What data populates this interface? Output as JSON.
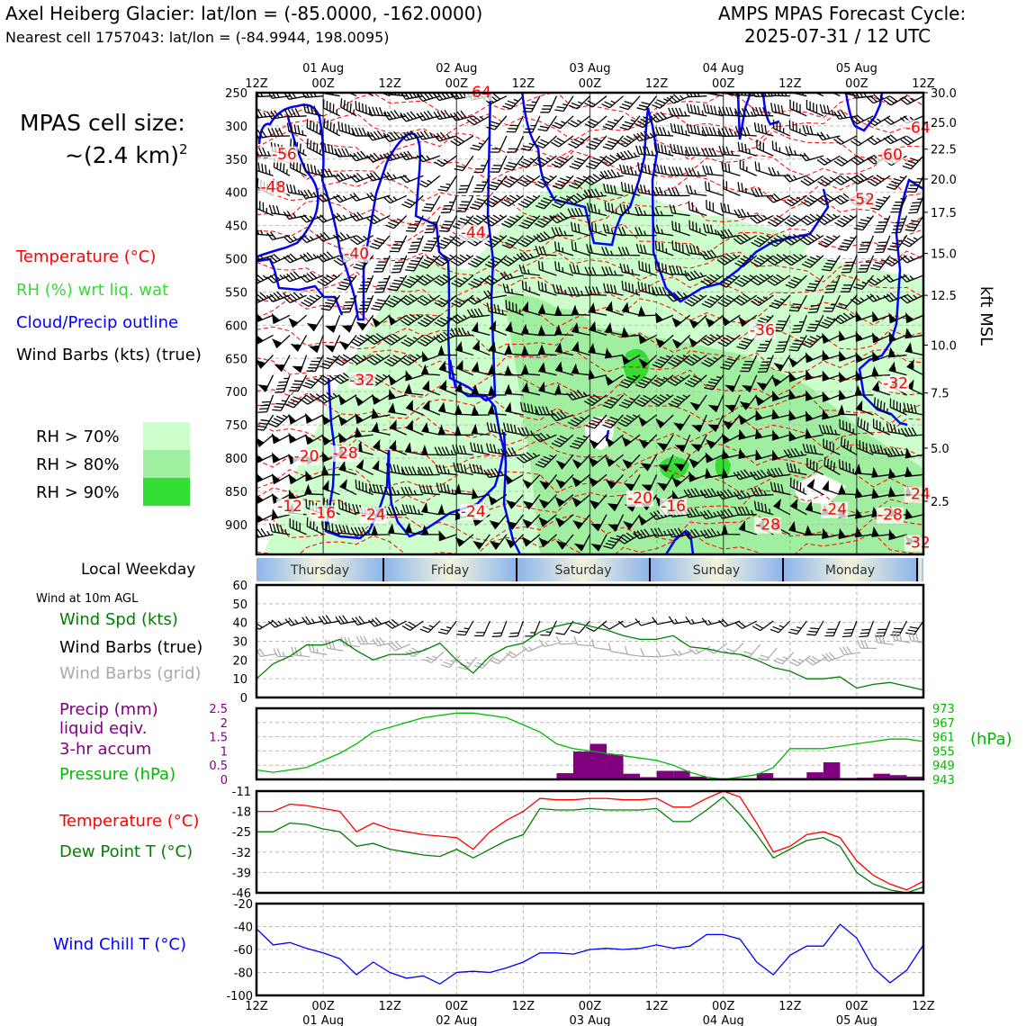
{
  "header": {
    "title": "Axel Heiberg Glacier: lat/lon = (-85.0000, -162.0000)",
    "subtitle": "Nearest cell 1757043: lat/lon = (-84.9944, 198.0095)",
    "cycle_title": "AMPS MPAS Forecast Cycle:",
    "cycle_value": "2025-07-31 / 12 UTC"
  },
  "left_panel": {
    "cell_size_label": "MPAS cell size:",
    "cell_size_value": "~(2.4 km)",
    "cell_size_sup": "2",
    "legend_temperature": "Temperature (°C)",
    "legend_rh": "RH (%) wrt liq. wat",
    "legend_cloud": "Cloud/Precip outline",
    "legend_wind": "Wind Barbs (kts) (true)",
    "rh_levels": [
      "RH > 70%",
      "RH > 80%",
      "RH > 90%"
    ],
    "weekday_label": "Local Weekday",
    "wind10_label": "Wind at 10m AGL",
    "wind_spd_label": "Wind Spd (kts)",
    "barbs_true_label": "Wind Barbs (true)",
    "barbs_grid_label": "Wind Barbs (grid)",
    "precip_label_1": "Precip (mm)",
    "precip_label_2": "liquid eqiv.",
    "precip_label_3": "3-hr accum",
    "pressure_label": "Pressure (hPa)",
    "temp_label": "Temperature (°C)",
    "dew_label": "Dew Point T (°C)",
    "chill_label": "Wind Chill T (°C)",
    "hpa_unit": "(hPa)",
    "kft_label": "kft MSL"
  },
  "colors": {
    "temperature": "#ff0000",
    "rh_legend": "#33dd33",
    "cloud": "#0000ff",
    "rh70": "#ccffcc",
    "rh80": "#a0eea0",
    "rh90": "#33dd33",
    "wind_speed": "#008000",
    "dew_point": "#008000",
    "grid_barbs": "#aaaaaa",
    "precip": "#800080",
    "pressure": "#00bb00",
    "wind_chill": "#0000ff"
  },
  "chart_data": [
    {
      "type": "heatmap",
      "name": "cross-section",
      "x": {
        "tick_labels": [
          "12Z",
          "00Z",
          "12Z",
          "00Z",
          "12Z",
          "00Z",
          "12Z",
          "00Z",
          "12Z",
          "00Z",
          "12Z"
        ],
        "date_labels": [
          "01 Aug",
          "02 Aug",
          "03 Aug",
          "04 Aug",
          "05 Aug"
        ],
        "range_hours": [
          0,
          120
        ]
      },
      "y_pressure_ticks": [
        250,
        300,
        350,
        400,
        450,
        500,
        550,
        600,
        650,
        700,
        750,
        800,
        850,
        900
      ],
      "y_pressure_range": [
        250,
        945
      ],
      "y_kft_ticks": [
        "30.0",
        "25.0",
        "22.5",
        "20.0",
        "17.5",
        "15.0",
        "12.5",
        "10.0",
        "7.5",
        "5.0",
        "2.5"
      ],
      "y_kft_pressures": [
        250,
        295,
        335,
        380,
        430,
        492,
        555,
        630,
        702,
        785,
        865
      ],
      "temperature_labels": [
        {
          "text": "-56",
          "t": 5,
          "p": 350
        },
        {
          "text": "-48",
          "t": 3,
          "p": 400
        },
        {
          "text": "-44",
          "t": 39,
          "p": 468
        },
        {
          "text": "-40",
          "t": 18,
          "p": 500
        },
        {
          "text": "-36",
          "t": 91,
          "p": 615
        },
        {
          "text": "-32",
          "t": 19,
          "p": 690
        },
        {
          "text": "-32",
          "t": 115,
          "p": 695
        },
        {
          "text": "-28",
          "t": 16,
          "p": 800
        },
        {
          "text": "-20",
          "t": 9,
          "p": 805
        },
        {
          "text": "-16",
          "t": 12,
          "p": 890
        },
        {
          "text": "-12",
          "t": 6,
          "p": 880
        },
        {
          "text": "-24",
          "t": 21,
          "p": 893
        },
        {
          "text": "-24",
          "t": 39,
          "p": 888
        },
        {
          "text": "-20",
          "t": 69,
          "p": 868
        },
        {
          "text": "-16",
          "t": 75,
          "p": 880
        },
        {
          "text": "-28",
          "t": 92,
          "p": 908
        },
        {
          "text": "-24",
          "t": 104,
          "p": 885
        },
        {
          "text": "-28",
          "t": 114,
          "p": 893
        },
        {
          "text": "-24",
          "t": 119,
          "p": 862
        },
        {
          "text": "-64",
          "t": 119,
          "p": 310
        },
        {
          "text": "-60",
          "t": 114,
          "p": 351
        },
        {
          "text": "-52",
          "t": 109,
          "p": 418
        },
        {
          "text": "-64",
          "t": 40,
          "p": 257
        },
        {
          "text": "-32",
          "t": 119,
          "p": 935
        }
      ]
    },
    {
      "type": "line",
      "name": "wind10",
      "ylim": [
        0,
        60
      ],
      "yticks": [
        0,
        10,
        20,
        30,
        40,
        50,
        60
      ],
      "x": [
        0,
        3,
        6,
        9,
        12,
        15,
        18,
        21,
        24,
        27,
        30,
        33,
        36,
        39,
        42,
        45,
        48,
        51,
        54,
        57,
        60,
        63,
        66,
        69,
        72,
        75,
        78,
        81,
        84,
        87,
        90,
        93,
        96,
        99,
        102,
        105,
        108,
        111,
        114,
        117,
        120
      ],
      "series": [
        {
          "values": [
            10,
            18,
            22,
            28,
            28,
            31,
            25,
            20,
            23,
            23,
            25,
            29,
            20,
            13,
            22,
            27,
            29,
            35,
            38,
            40,
            38,
            36,
            33,
            31,
            31,
            33,
            27,
            26,
            24,
            23,
            20,
            16,
            14,
            10,
            10,
            11,
            5,
            7,
            8,
            6,
            4
          ]
        }
      ]
    },
    {
      "type": "bar",
      "name": "precip",
      "ylim": [
        0,
        2.5
      ],
      "yticks": [
        0,
        0.5,
        1.0,
        1.5,
        2.0,
        2.5
      ],
      "x": [
        0,
        3,
        6,
        9,
        12,
        15,
        18,
        21,
        24,
        27,
        30,
        33,
        36,
        39,
        42,
        45,
        48,
        51,
        54,
        57,
        60,
        63,
        66,
        69,
        72,
        75,
        78,
        81,
        84,
        87,
        90,
        93,
        96,
        99,
        102,
        105,
        108,
        111,
        114,
        117
      ],
      "values": [
        0,
        0,
        0,
        0,
        0,
        0,
        0,
        0,
        0,
        0,
        0,
        0,
        0,
        0,
        0,
        0,
        0,
        0,
        0.22,
        0.98,
        1.25,
        0.88,
        0.2,
        0.08,
        0.3,
        0.3,
        0.1,
        0,
        0,
        0,
        0.22,
        0.05,
        0.05,
        0.25,
        0.6,
        0.05,
        0.06,
        0.2,
        0.15,
        0.1
      ]
    },
    {
      "type": "line",
      "name": "pressure",
      "ylim": [
        943,
        973
      ],
      "yticks": [
        943,
        949,
        955,
        961,
        967,
        973
      ],
      "x": [
        0,
        3,
        6,
        9,
        12,
        15,
        18,
        21,
        24,
        27,
        30,
        33,
        36,
        39,
        42,
        45,
        48,
        51,
        54,
        57,
        60,
        63,
        66,
        69,
        72,
        75,
        78,
        81,
        84,
        87,
        90,
        93,
        96,
        99,
        102,
        105,
        108,
        111,
        114,
        117,
        120
      ],
      "series": [
        {
          "values": [
            947,
            946,
            947,
            948,
            951,
            954,
            958,
            963,
            965,
            967,
            969,
            970,
            971,
            971,
            970,
            969,
            966,
            963,
            958,
            956,
            955,
            954,
            953,
            952,
            951,
            949,
            946,
            944,
            943,
            944,
            945,
            948,
            956,
            956,
            956,
            957,
            958,
            959,
            960,
            960,
            959
          ]
        }
      ]
    },
    {
      "type": "line",
      "name": "temperature-dewpoint",
      "ylim": [
        -46,
        -11
      ],
      "yticks": [
        -11,
        -18,
        -25,
        -32,
        -39,
        -46
      ],
      "x": [
        0,
        3,
        6,
        9,
        12,
        15,
        18,
        21,
        24,
        27,
        30,
        33,
        36,
        39,
        42,
        45,
        48,
        51,
        54,
        57,
        60,
        63,
        66,
        69,
        72,
        75,
        78,
        81,
        84,
        87,
        90,
        93,
        96,
        99,
        102,
        105,
        108,
        111,
        114,
        117,
        120
      ],
      "series": [
        {
          "name": "Temperature",
          "values": [
            -18,
            -18,
            -15.5,
            -16,
            -17,
            -18,
            -25,
            -22,
            -24,
            -25,
            -26,
            -26.5,
            -27,
            -31,
            -25,
            -21,
            -18,
            -13.5,
            -14,
            -14,
            -13.5,
            -13.5,
            -14,
            -14,
            -13.5,
            -16.5,
            -16.5,
            -13.5,
            -11,
            -13,
            -22,
            -32,
            -30,
            -26,
            -25,
            -27,
            -35,
            -40,
            -43,
            -45,
            -42
          ]
        },
        {
          "name": "Dew Point T",
          "values": [
            -25,
            -25,
            -22,
            -22.5,
            -24,
            -25,
            -30,
            -29,
            -31,
            -32,
            -33,
            -33.5,
            -31,
            -34,
            -31,
            -28,
            -26,
            -17,
            -17.5,
            -17.5,
            -17,
            -17.5,
            -17.5,
            -17.5,
            -17,
            -21.5,
            -21.5,
            -17.5,
            -13,
            -19,
            -26,
            -34,
            -31,
            -28,
            -27,
            -30,
            -39,
            -43,
            -45,
            -46,
            -44
          ]
        }
      ]
    },
    {
      "type": "line",
      "name": "wind-chill",
      "ylim": [
        -100,
        -20
      ],
      "yticks": [
        -20,
        -40,
        -60,
        -80,
        -100
      ],
      "x": [
        0,
        3,
        6,
        9,
        12,
        15,
        18,
        21,
        24,
        27,
        30,
        33,
        36,
        39,
        42,
        45,
        48,
        51,
        54,
        57,
        60,
        63,
        66,
        69,
        72,
        75,
        78,
        81,
        84,
        87,
        90,
        93,
        96,
        99,
        102,
        105,
        108,
        111,
        114,
        117,
        120
      ],
      "series": [
        {
          "values": [
            -42,
            -56,
            -54,
            -59,
            -63,
            -68,
            -82,
            -71,
            -80,
            -85,
            -83,
            -90,
            -80,
            -79,
            -80,
            -76,
            -71,
            -63,
            -63,
            -64,
            -60,
            -59,
            -60,
            -59,
            -56,
            -59,
            -57,
            -47,
            -47,
            -51,
            -71,
            -82,
            -65,
            -57,
            -57,
            -38,
            -50,
            -76,
            -89,
            -78,
            -56
          ]
        }
      ]
    },
    {
      "type": "table",
      "name": "weekday-strip",
      "days": [
        "Thursday",
        "Friday",
        "Saturday",
        "Sunday",
        "Monday"
      ]
    }
  ]
}
